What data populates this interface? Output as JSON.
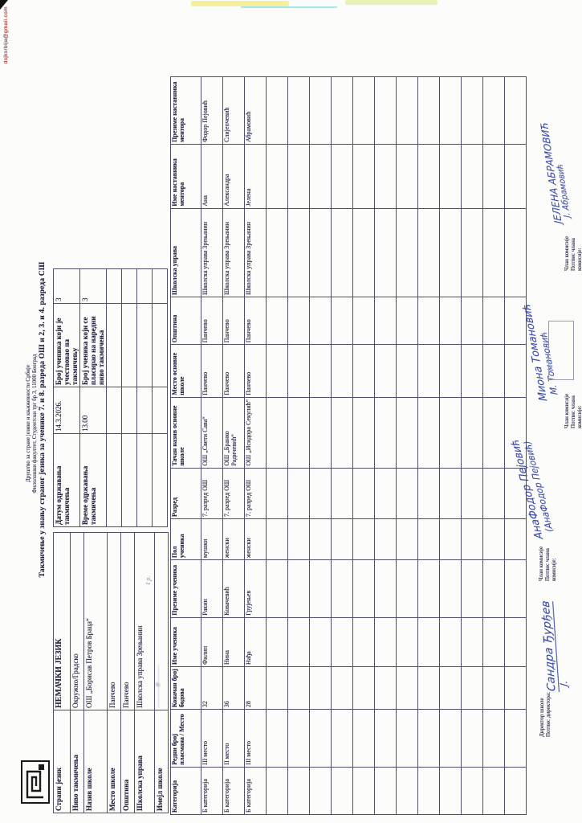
{
  "watermark_email": "dsjksrbija@gmail.com",
  "header": {
    "society_line1": "Друштво за стране језике и књижевности Србије",
    "society_line2": "Филолошки факултет, Студентски трг бр 3, 11000 Београд",
    "title": "Такмичење у знању страног језика за ученике 7. и 8. разреда ОШ и 2, 3. и 4. разреда СШ"
  },
  "school_info_table": {
    "rows": [
      {
        "label": "Страни језик",
        "value": "НЕМАЧКИ ЈЕЗИК",
        "bold": true
      },
      {
        "label": "Ниво такмичења",
        "value": "Окружно/Градско"
      },
      {
        "label": "Назив школе",
        "value": "ОШ „Борисав Петров Браца“"
      },
      {
        "label": "Место школе",
        "value": "Панчево"
      },
      {
        "label": "Општина",
        "value": "Панчево"
      },
      {
        "label": "Школска управа",
        "value": "Школска управа Зрењанин"
      },
      {
        "label": "Имејл школе",
        "value": "……………@…………",
        "illegible": true
      }
    ]
  },
  "session_info_table": {
    "rows": [
      {
        "label": "Датум одржавања такмичења",
        "value": "14.3.2026.",
        "label2": "Број ученика који је учествовао на такмичењу",
        "value2": "3"
      },
      {
        "label": "Време одржавања такмичења",
        "value": "13.00",
        "label2": "Број ученика који се пласирао на наредни ниво такмичења",
        "value2": "3"
      }
    ],
    "empty_rows": 4
  },
  "results_table": {
    "columns": [
      "Категорија",
      "Редни број пласмана / Место",
      "Коначан број бодова",
      "Име ученика",
      "Презиме ученика",
      "Пол ученика",
      "Разред",
      "Тачан назив основне школе",
      "Место основне школе",
      "Општина",
      "Школска управа",
      "Име наставника ментора",
      "Презиме наставника ментора"
    ],
    "rows": [
      [
        "Б категорија",
        "III место",
        "32",
        "Филип",
        "Ракин",
        "мушки",
        "7. разред ОШ",
        "ОШ „Свети Сава“",
        "Панчево",
        "Панчево",
        "Школска управа Зрењанин",
        "Ана",
        "Фодор Пејовић"
      ],
      [
        "Б категорија",
        "II место",
        "36",
        "Нина",
        "Ковачевић",
        "женски",
        "7. разред ОШ",
        "ОШ „Бранко Радичевић“",
        "Панчево",
        "Панчево",
        "Школска управа Зрењанин",
        "Александра",
        "Слијепчевић"
      ],
      [
        "Б категорија",
        "III место",
        "28",
        "Нађа",
        "Грујењев",
        "женски",
        "7. разред ОШ",
        "ОШ „Исидора Секулић“",
        "Панчево",
        "Панчево",
        "Школска управа Зрењанин",
        "Јелена",
        "Абрамовић"
      ]
    ],
    "empty_rows": 12
  },
  "signature_blocks": [
    {
      "label_lines": [
        "Директор школе",
        "Потпис директора:"
      ],
      "signature_lines": [
        "Сандра Ђурђев",
        "Ј."
      ]
    },
    {
      "label_lines": [
        "Члан комисије",
        "Потпис члана",
        "комисије:"
      ],
      "signature_lines": [
        "АнаФодор Пејовић",
        "(АнаФодор Пејовић)"
      ]
    },
    {
      "label_lines": [
        "Члан комисије",
        "Потпис члана",
        "комисије:"
      ],
      "signature_lines": [
        "Миона Томановић",
        "М. Томановић"
      ]
    },
    {
      "label_lines": [
        "Члан комисије",
        "Потпис члана",
        "комисије:"
      ],
      "signature_lines": [
        "ЈЕЛЕНА АБРАМОВИЋ",
        "Ј. Абрамовић"
      ]
    }
  ],
  "icons": {
    "logo": "society-logo",
    "corner": "scanner-corner-artifact"
  },
  "colors": {
    "paper": "#fcfcfa",
    "ink": "#262640",
    "table_border": "#50506a",
    "handwriting_blue": "#2c3f9f",
    "watermark_red": "#c23b33",
    "artifact_yellow": "#efe84a",
    "artifact_green": "#cfe04a",
    "artifact_cyan": "#39c8d8"
  }
}
